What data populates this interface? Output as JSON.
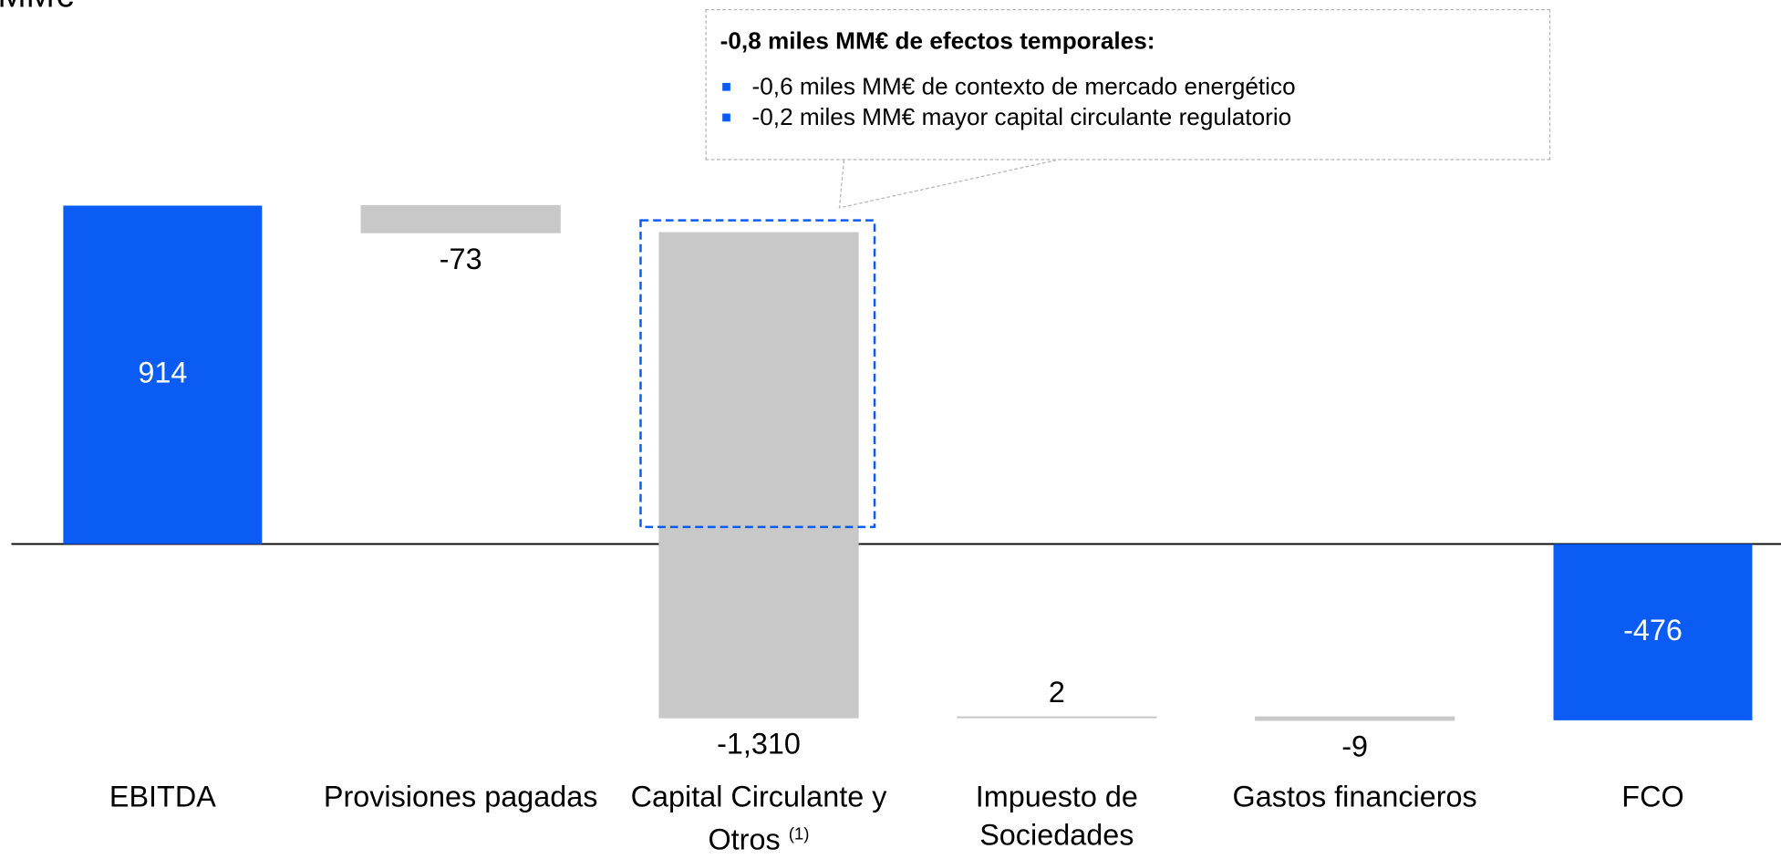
{
  "chart_data": {
    "type": "waterfall",
    "title": "MM€",
    "categories": [
      "EBITDA",
      "Provisiones pagadas",
      "Capital Circulante y Otros",
      "Impuesto de Sociedades",
      "Gastos financieros",
      "FCO"
    ],
    "category_footnotes": [
      null,
      null,
      "(1)",
      null,
      null,
      null
    ],
    "values": [
      914,
      -73,
      -1310,
      2,
      -9,
      -476
    ],
    "value_labels": [
      "914",
      "-73",
      "-1,310",
      "2",
      "-9",
      "-476"
    ],
    "measure": [
      "total",
      "relative",
      "relative",
      "relative",
      "relative",
      "total"
    ],
    "total_color": "#0A5CF5",
    "delta_color": "#C8C8C8",
    "callout": {
      "title": "-0,8 miles MM€ de efectos temporales:",
      "bullets": [
        "-0,6 miles MM€ de contexto de mercado energético",
        "-0,2 miles MM€ mayor capital circulante regulatorio"
      ]
    }
  }
}
